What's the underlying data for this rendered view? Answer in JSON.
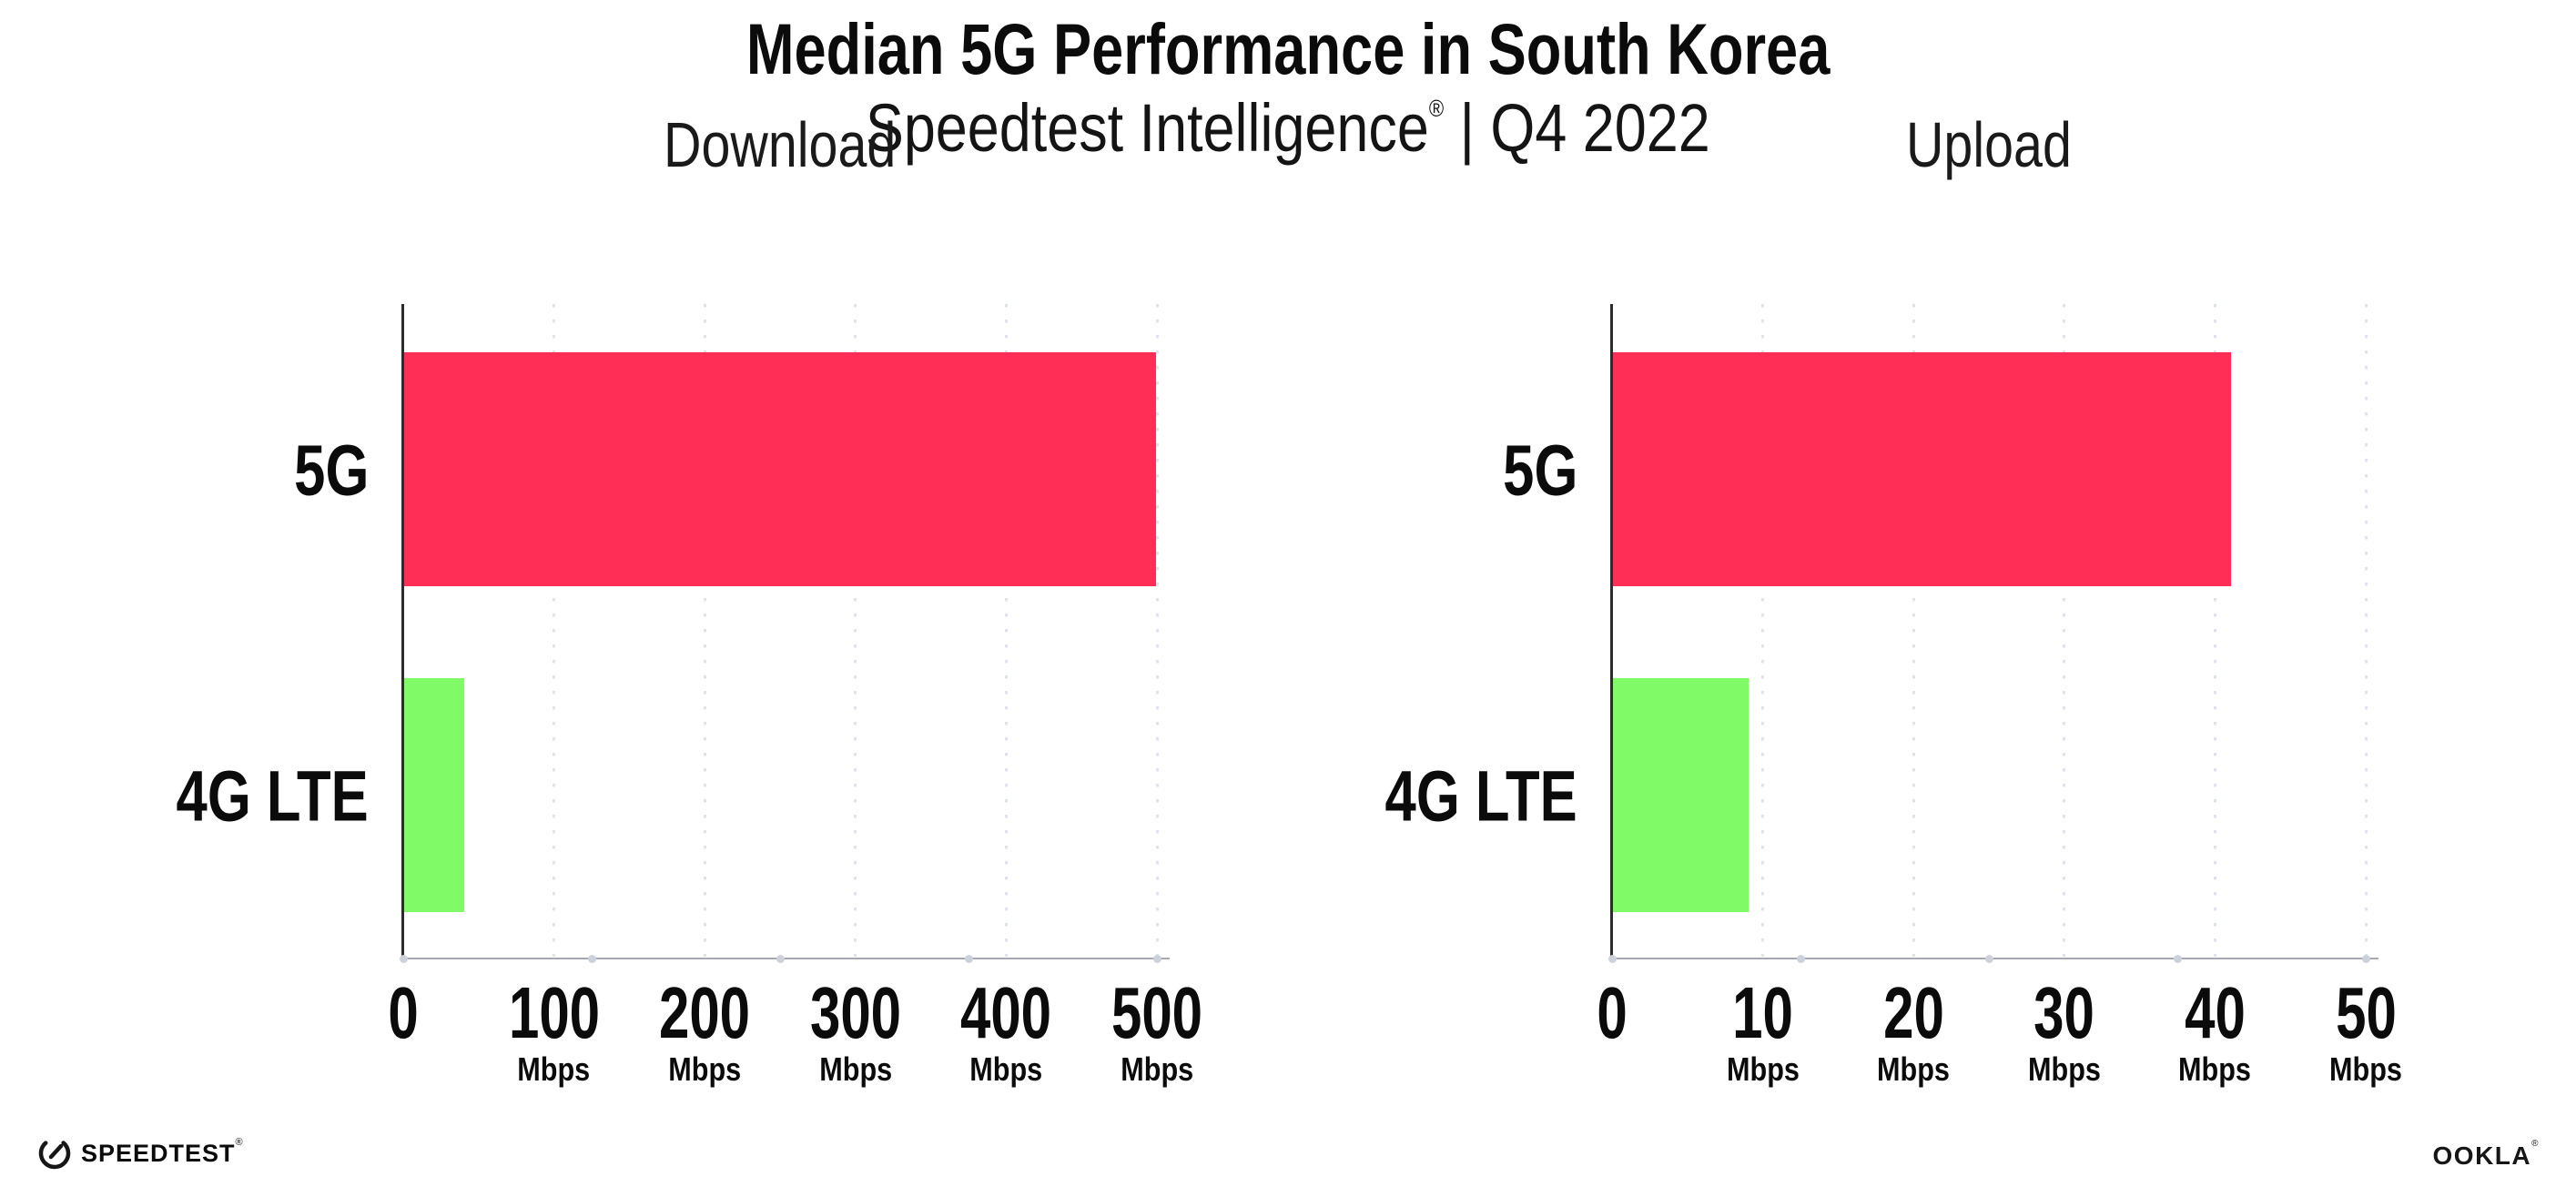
{
  "header": {
    "title": "Median 5G Performance in South Korea",
    "subtitle_brand": "Speedtest Intelligence",
    "subtitle_reg": "®",
    "subtitle_rest": " | Q4 2022"
  },
  "chart_data": {
    "type": "bar",
    "orientation": "horizontal",
    "unit": "Mbps",
    "grid": "vertical-dotted",
    "legend": "none",
    "colors": {
      "5G": "#ff2e56",
      "4G LTE": "#80fa67"
    },
    "charts": [
      {
        "title": "Download",
        "categories": [
          "5G",
          "4G LTE"
        ],
        "values": [
          499,
          40
        ],
        "xlabel_unit": "Mbps",
        "xlim": [
          0,
          500
        ],
        "xticks": [
          0,
          100,
          200,
          300,
          400,
          500
        ]
      },
      {
        "title": "Upload",
        "categories": [
          "5G",
          "4G LTE"
        ],
        "values": [
          41,
          9
        ],
        "xlabel_unit": "Mbps",
        "xlim": [
          0,
          50
        ],
        "xticks": [
          0,
          10,
          20,
          30,
          40,
          50
        ]
      }
    ]
  },
  "footer": {
    "speedtest_label": "SPEEDTEST",
    "speedtest_reg": "®",
    "ookla_label": "OOKLA",
    "ookla_reg": "®"
  }
}
